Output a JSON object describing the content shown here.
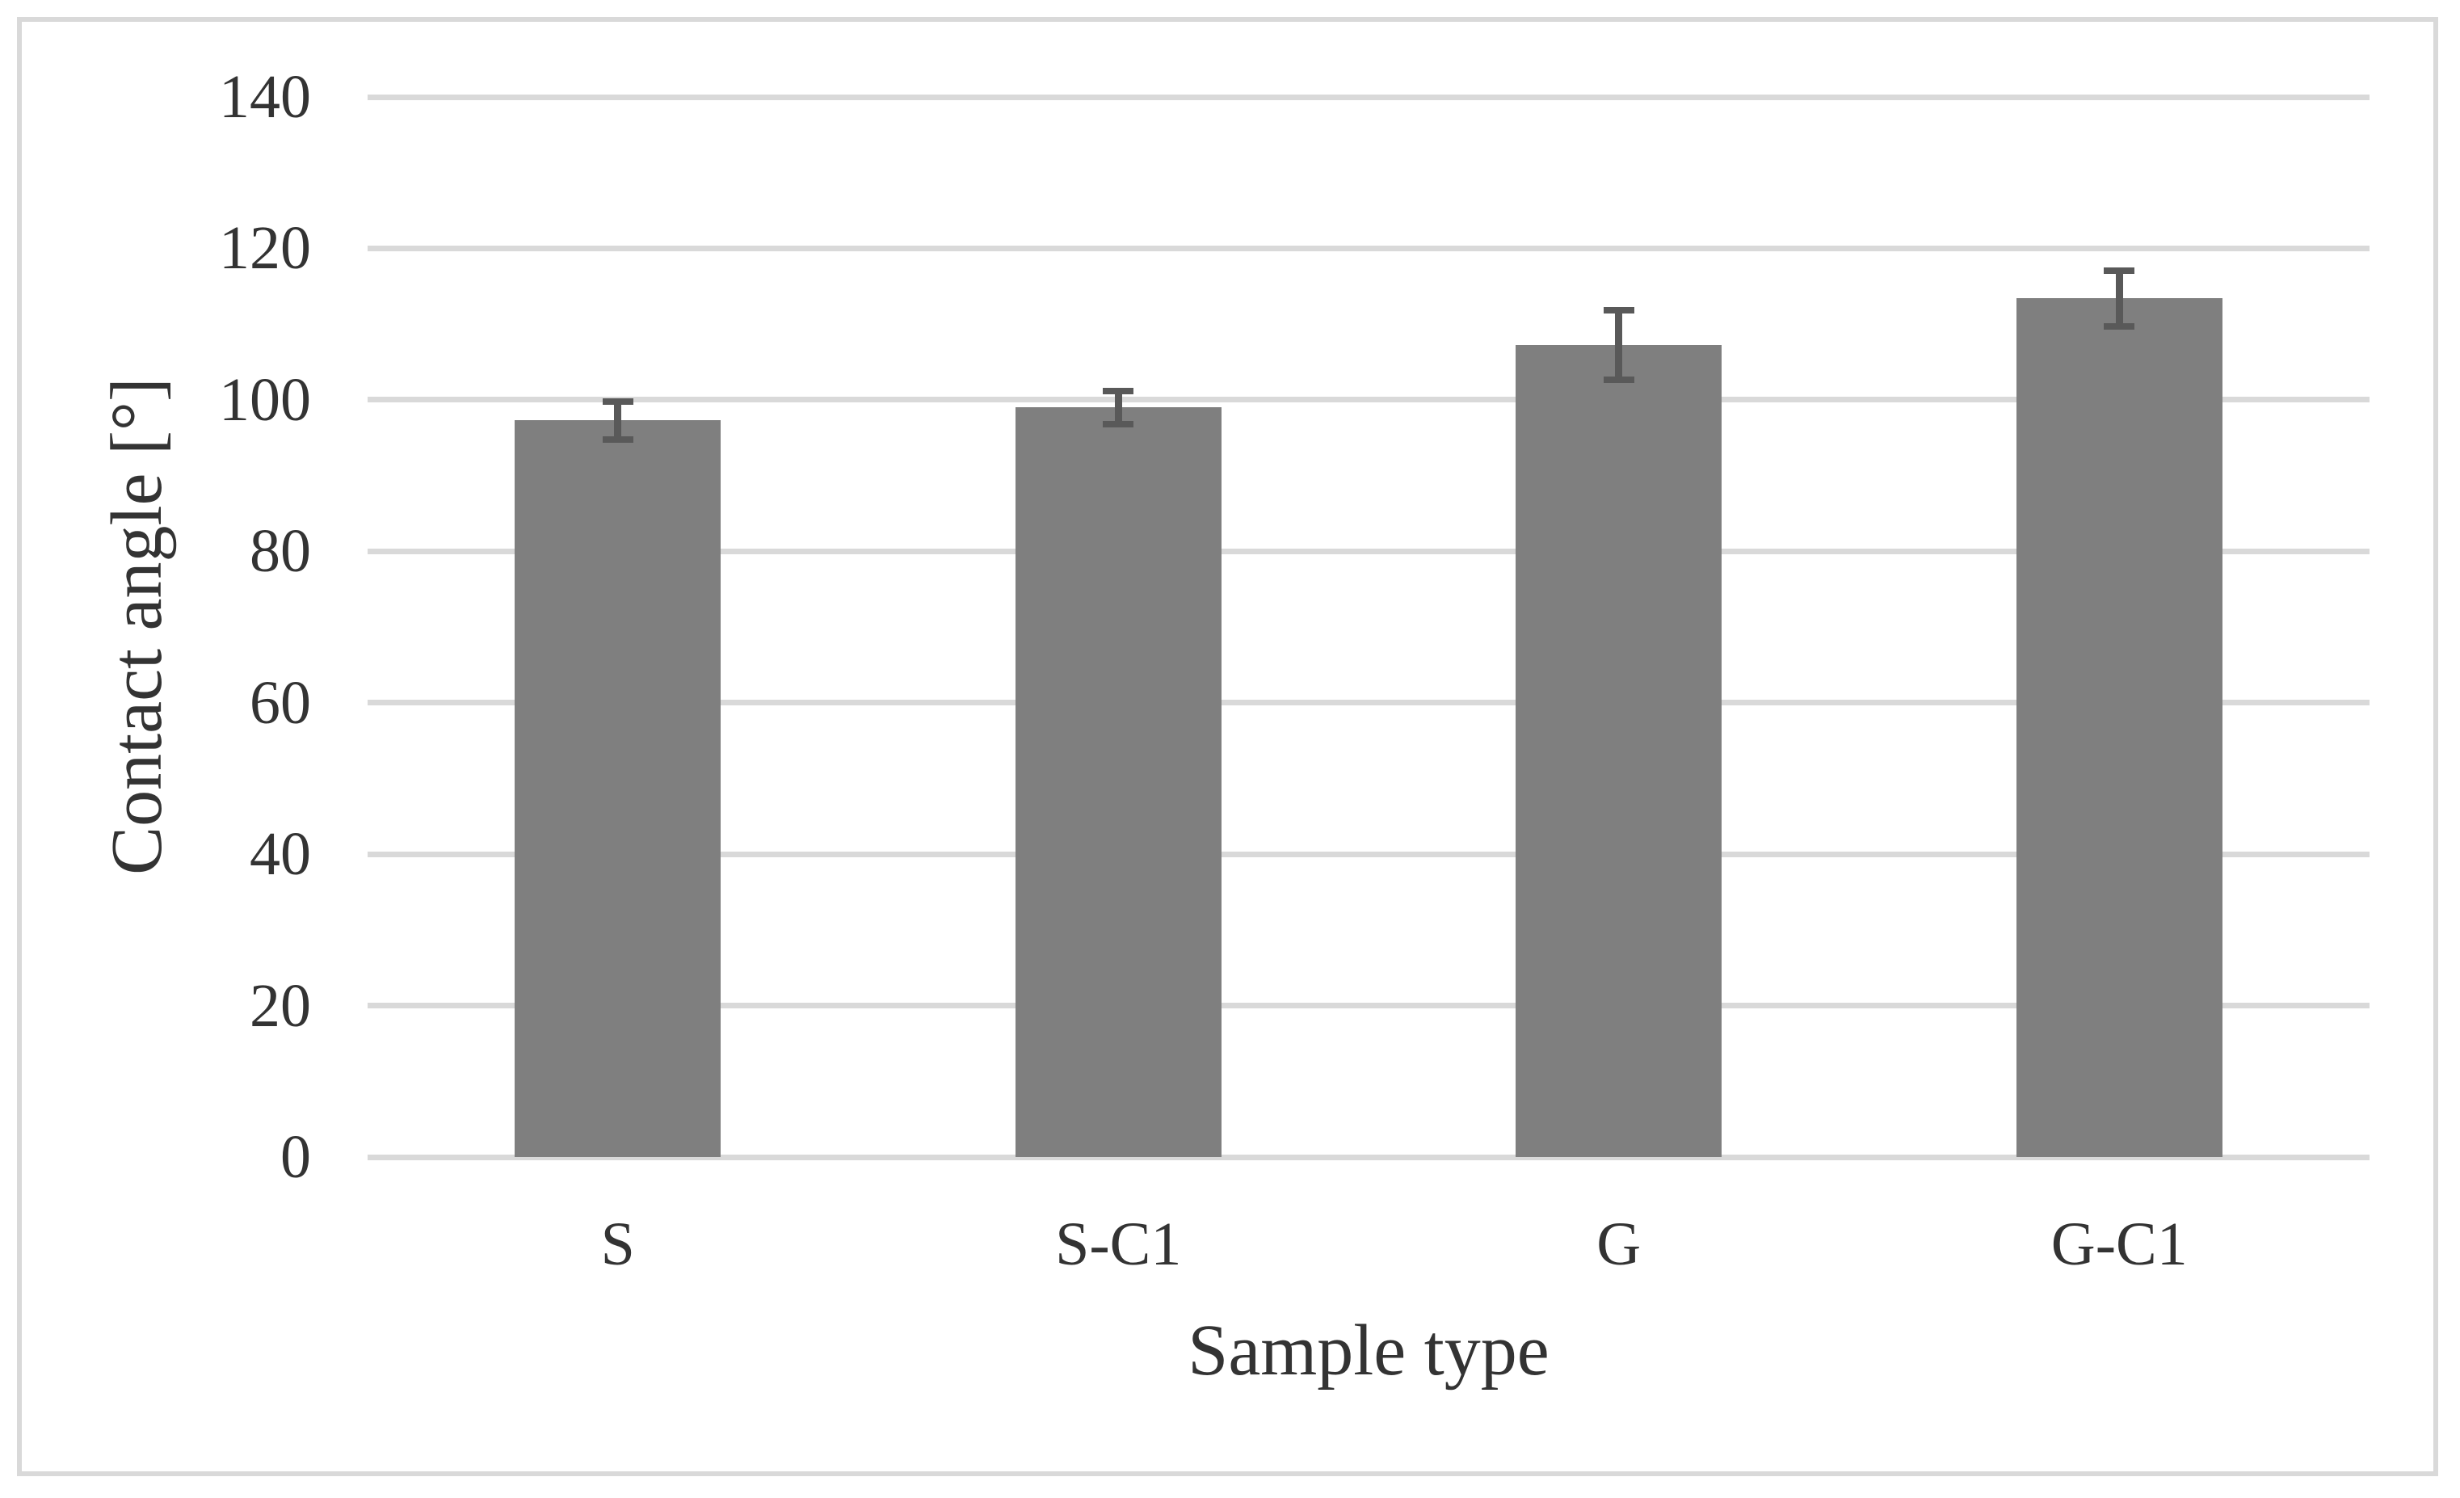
{
  "chart_data": {
    "type": "bar",
    "title": "",
    "categories": [
      "S",
      "S-C1",
      "G",
      "G-C1"
    ],
    "series": [
      {
        "name": "Contact angle",
        "values": [
          97.3,
          99.0,
          107.2,
          113.4
        ],
        "errors_plus": [
          2.5,
          2.2,
          4.6,
          3.7
        ],
        "errors_minus": [
          2.5,
          2.2,
          4.6,
          3.7
        ]
      }
    ],
    "xlabel": "Sample type",
    "ylabel": "Contact angle [°]",
    "ylim": [
      0,
      140
    ],
    "ytick_step": 20,
    "yticks": [
      140,
      120,
      100,
      80,
      60,
      40,
      20,
      0
    ],
    "grid": true,
    "legend_position": "none",
    "colors": {
      "bar_fill": "#7f7f7f",
      "error_bar": "#595959",
      "gridline": "#d9d9d9",
      "frame_border": "#d9d9d9",
      "text": "#333333",
      "background": "#ffffff"
    }
  }
}
